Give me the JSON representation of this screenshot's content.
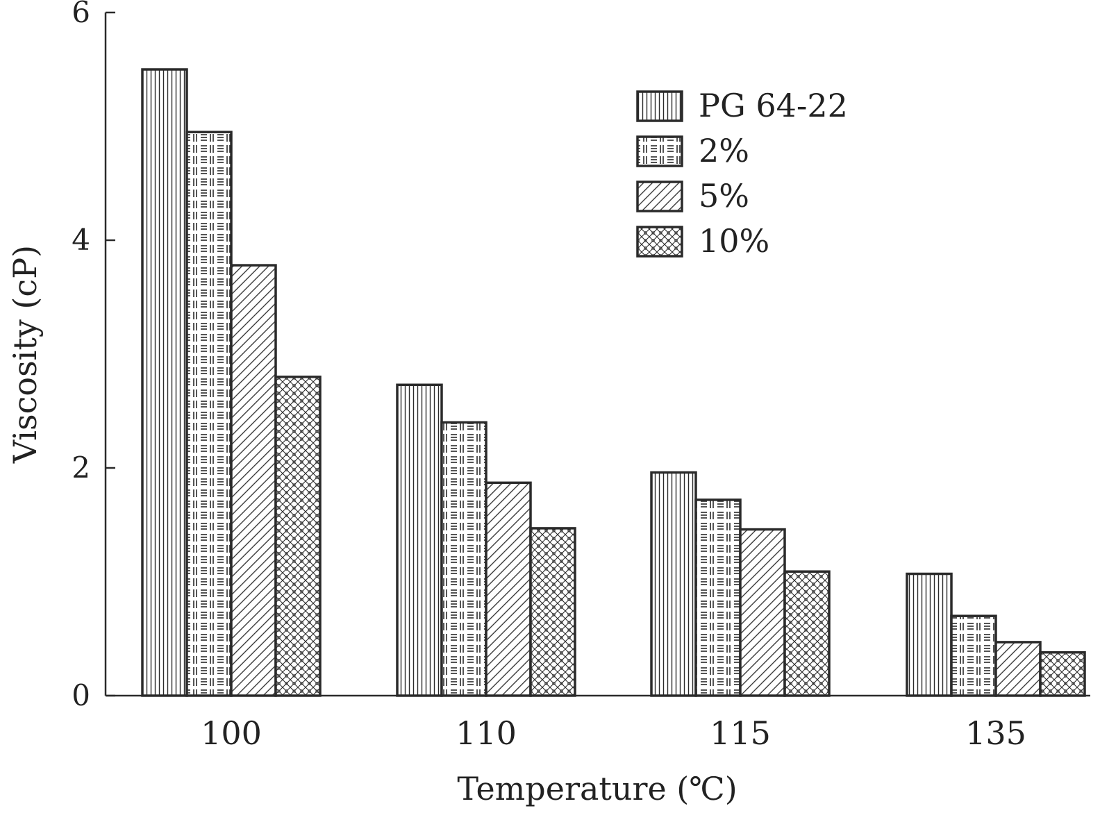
{
  "chart_data": {
    "type": "bar",
    "title": "",
    "xlabel": "Temperature (℃)",
    "ylabel": "Viscosity (cP)",
    "categories": [
      "100",
      "110",
      "115",
      "135"
    ],
    "ylim": [
      0,
      6
    ],
    "yticks": [
      "0",
      "2",
      "4",
      "6"
    ],
    "legend_position": "top-right",
    "grid": false,
    "series": [
      {
        "name": "PG 64-22",
        "pattern": "vertical-lines",
        "values": [
          5.5,
          2.73,
          1.96,
          1.07
        ]
      },
      {
        "name": "2%",
        "pattern": "grid-dashes",
        "values": [
          4.95,
          2.4,
          1.72,
          0.7
        ]
      },
      {
        "name": "5%",
        "pattern": "diagonal-hatch",
        "values": [
          3.78,
          1.87,
          1.46,
          0.47
        ]
      },
      {
        "name": "10%",
        "pattern": "crosshatch",
        "values": [
          2.8,
          1.47,
          1.09,
          0.38
        ]
      }
    ],
    "colors": {
      "stroke": "#2a2a2a",
      "fill": "#ffffff",
      "text": "#222222"
    }
  }
}
